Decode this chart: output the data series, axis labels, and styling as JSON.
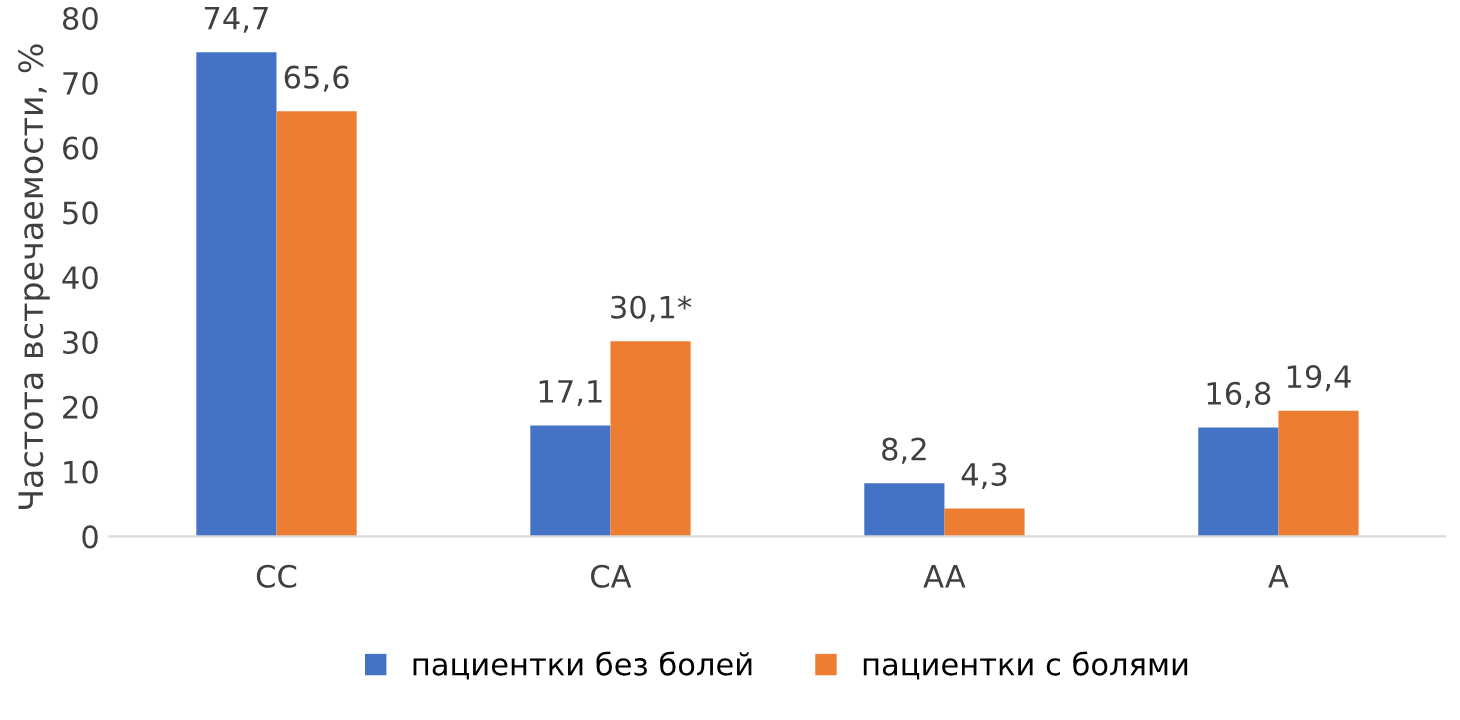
{
  "chart_data": {
    "type": "bar",
    "ylabel": "Частота встречаемости, %",
    "categories": [
      "CC",
      "CA",
      "AA",
      "A"
    ],
    "series": [
      {
        "name": "пациентки без болей",
        "color": "#4472c4",
        "values": [
          74.7,
          17.1,
          8.2,
          16.8
        ],
        "value_labels": [
          "74,7",
          "17,1",
          "8,2",
          "16,8"
        ]
      },
      {
        "name": "пациентки с болями",
        "color": "#ed7d31",
        "values": [
          65.6,
          30.1,
          4.3,
          19.4
        ],
        "value_labels": [
          "65,6",
          "30,1*",
          "4,3",
          "19,4"
        ]
      }
    ],
    "ylim": [
      0,
      80
    ],
    "yticks": [
      0,
      10,
      20,
      30,
      40,
      50,
      60,
      70,
      80
    ],
    "grid": false,
    "legend": "bottom"
  }
}
